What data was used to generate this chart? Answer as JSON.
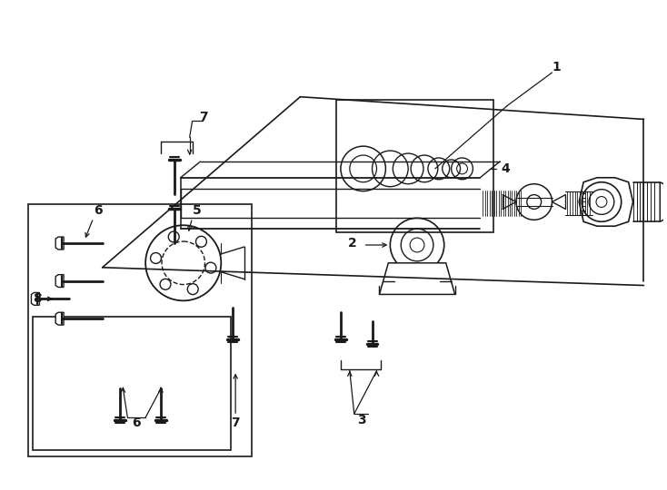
{
  "bg_color": "#ffffff",
  "line_color": "#1a1a1a",
  "figure_width": 7.34,
  "figure_height": 5.4,
  "dpi": 100,
  "font_size": 10,
  "font_weight": "bold"
}
